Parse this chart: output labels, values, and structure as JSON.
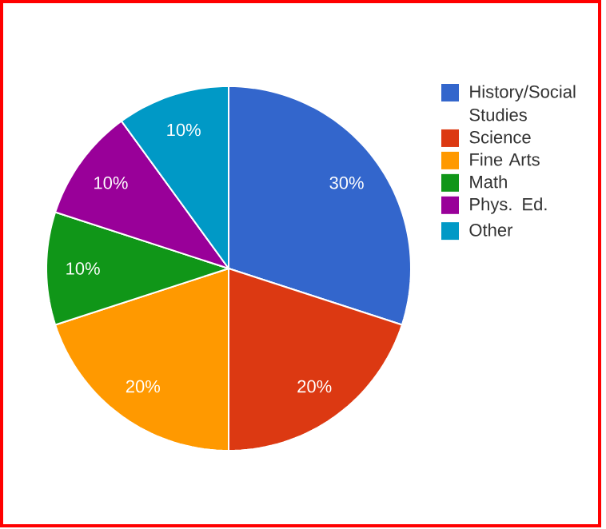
{
  "chart_data": {
    "type": "pie",
    "categories": [
      "History/Social Studies",
      "Science",
      "Fine Arts",
      "Math",
      "Phys. Ed.",
      "Other"
    ],
    "values": [
      30,
      20,
      20,
      10,
      10,
      10
    ],
    "colors": [
      "#3366cc",
      "#dc3912",
      "#ff9900",
      "#109618",
      "#990099",
      "#0099c6"
    ],
    "value_labels": [
      "30%",
      "20%",
      "20%",
      "10%",
      "10%",
      "10%"
    ],
    "legend": "right"
  }
}
